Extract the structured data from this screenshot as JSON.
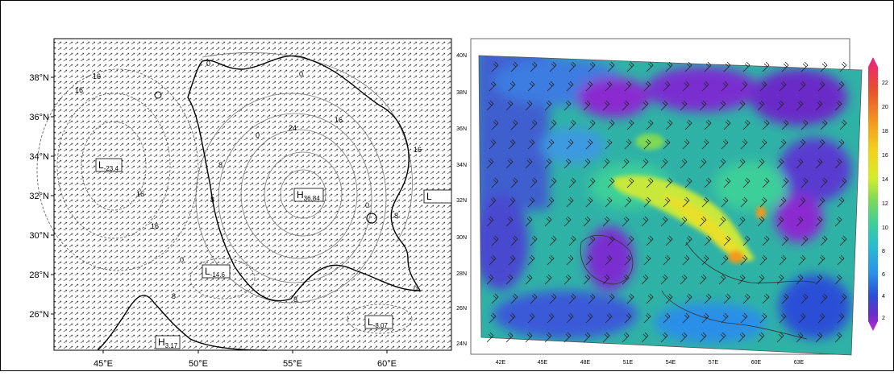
{
  "left_panel": {
    "lat_labels": [
      "38°N",
      "36°N",
      "34°N",
      "32°N",
      "30°N",
      "28°N",
      "26°N"
    ],
    "lon_labels": [
      "45°E",
      "50°E",
      "55°E",
      "60°E"
    ],
    "extrema": [
      {
        "letter": "L",
        "sub": "-23.4"
      },
      {
        "letter": "H",
        "sub": "36.84"
      },
      {
        "letter": "L",
        "sub": "-14.6"
      },
      {
        "letter": "L",
        "sub": "-8.07"
      },
      {
        "letter": "H",
        "sub": "3.17"
      },
      {
        "letter": "L",
        "sub": ""
      }
    ],
    "contour_labels": [
      "16",
      "16",
      "0",
      "0",
      "24",
      "16",
      "0",
      "8",
      "16",
      "8",
      "16",
      "0",
      "8",
      "0",
      "16",
      "8",
      "8",
      "0"
    ]
  },
  "right_panel": {
    "lat_labels": [
      "40N",
      "38N",
      "36N",
      "34N",
      "32N",
      "30N",
      "28N",
      "26N",
      "24N"
    ],
    "lon_labels": [
      "42E",
      "45E",
      "48E",
      "51E",
      "54E",
      "57E",
      "60E",
      "63E"
    ],
    "colorbar": {
      "ticks": [
        "22",
        "20",
        "18",
        "16",
        "14",
        "12",
        "10",
        "8",
        "6",
        "4",
        "2"
      ],
      "colors": [
        "#e8237f",
        "#e8502b",
        "#f39a1e",
        "#f3d01e",
        "#d6ec2c",
        "#7ed957",
        "#3ccf9a",
        "#29b8d6",
        "#2a8fe8",
        "#2c4fd6",
        "#6a2cc8",
        "#b82bd1"
      ]
    }
  }
}
